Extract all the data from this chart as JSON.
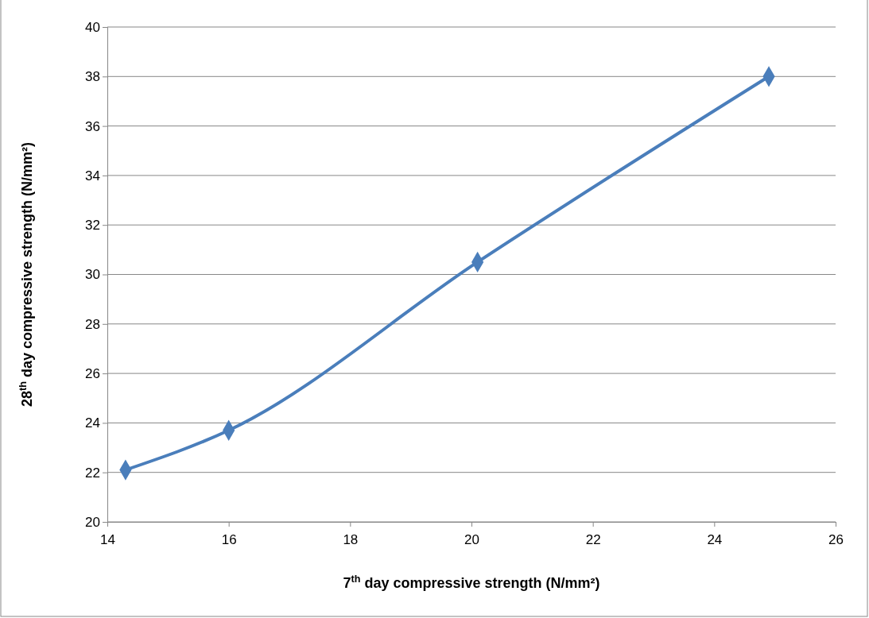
{
  "chart_data": {
    "type": "line",
    "xlabel": "7$^{th}$ day compressive strength (N/mm²)",
    "ylabel": "28$^{th}$ day  compressive strength (N/mm²)",
    "x": [
      14.3,
      16,
      20.1,
      24.9
    ],
    "series": [
      {
        "color": "#4a7ebb",
        "values": [
          22.1,
          23.7,
          30.5,
          38.0
        ]
      }
    ],
    "xlim": [
      14,
      26
    ],
    "xticks": [
      14,
      16,
      18,
      20,
      22,
      24,
      26
    ],
    "ylim": [
      20,
      40
    ],
    "yticks": [
      20,
      22,
      24,
      26,
      28,
      30,
      32,
      34,
      36,
      38,
      40
    ],
    "grid": "y",
    "marker": "diamond",
    "line_style": "solid"
  }
}
